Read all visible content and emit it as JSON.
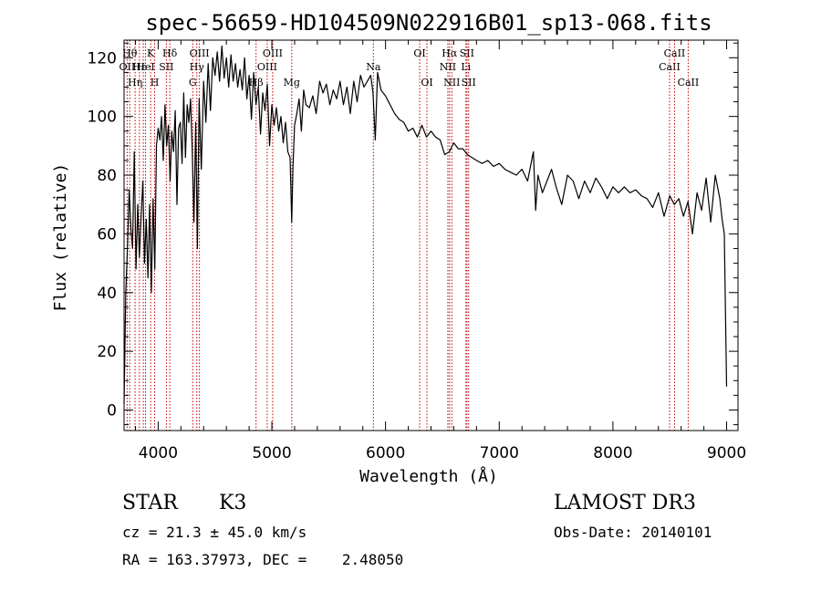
{
  "chart_data": {
    "type": "line",
    "title": "spec-56659-HD104509N022916B01_sp13-068.fits",
    "xlabel": "Wavelength (Å)",
    "ylabel": "Flux (relative)",
    "xlim": [
      3700,
      9100
    ],
    "ylim": [
      -7,
      126
    ],
    "x_ticks": [
      4000,
      5000,
      6000,
      7000,
      8000,
      9000
    ],
    "y_ticks": [
      0,
      20,
      40,
      60,
      80,
      100,
      120
    ],
    "series": [
      {
        "name": "spectrum",
        "x": [
          3700,
          3715,
          3730,
          3745,
          3760,
          3775,
          3790,
          3805,
          3820,
          3835,
          3850,
          3865,
          3880,
          3895,
          3910,
          3925,
          3940,
          3955,
          3970,
          3985,
          4000,
          4015,
          4030,
          4045,
          4060,
          4075,
          4090,
          4105,
          4120,
          4135,
          4150,
          4165,
          4180,
          4195,
          4210,
          4225,
          4240,
          4255,
          4270,
          4285,
          4300,
          4315,
          4330,
          4345,
          4360,
          4380,
          4400,
          4420,
          4440,
          4460,
          4480,
          4500,
          4520,
          4540,
          4560,
          4580,
          4600,
          4620,
          4640,
          4660,
          4680,
          4700,
          4720,
          4740,
          4760,
          4780,
          4800,
          4820,
          4840,
          4860,
          4880,
          4900,
          4920,
          4940,
          4960,
          4980,
          5000,
          5020,
          5040,
          5060,
          5080,
          5100,
          5120,
          5140,
          5160,
          5175,
          5185,
          5200,
          5220,
          5240,
          5260,
          5280,
          5300,
          5330,
          5360,
          5390,
          5420,
          5450,
          5480,
          5510,
          5540,
          5570,
          5600,
          5630,
          5660,
          5690,
          5720,
          5750,
          5780,
          5810,
          5840,
          5870,
          5890,
          5910,
          5930,
          5960,
          6000,
          6040,
          6080,
          6120,
          6160,
          6200,
          6240,
          6280,
          6320,
          6360,
          6400,
          6440,
          6480,
          6520,
          6562,
          6600,
          6640,
          6680,
          6720,
          6760,
          6800,
          6850,
          6900,
          6950,
          7000,
          7050,
          7100,
          7150,
          7200,
          7250,
          7300,
          7320,
          7340,
          7380,
          7420,
          7460,
          7500,
          7550,
          7600,
          7650,
          7700,
          7750,
          7800,
          7850,
          7900,
          7950,
          8000,
          8050,
          8100,
          8150,
          8200,
          8250,
          8300,
          8350,
          8400,
          8450,
          8500,
          8540,
          8580,
          8620,
          8660,
          8700,
          8740,
          8780,
          8820,
          8860,
          8900,
          8940,
          8960,
          8980,
          9000
        ],
        "y": [
          2,
          40,
          55,
          75,
          62,
          55,
          88,
          48,
          70,
          52,
          66,
          78,
          50,
          65,
          45,
          70,
          40,
          72,
          48,
          90,
          96,
          92,
          100,
          85,
          104,
          90,
          97,
          78,
          95,
          88,
          102,
          70,
          96,
          98,
          84,
          108,
          86,
          104,
          98,
          106,
          88,
          64,
          98,
          55,
          106,
          82,
          112,
          98,
          118,
          102,
          120,
          114,
          122,
          112,
          124,
          113,
          120,
          110,
          121,
          112,
          118,
          110,
          116,
          109,
          120,
          106,
          114,
          99,
          115,
          104,
          110,
          94,
          108,
          102,
          111,
          90,
          104,
          97,
          103,
          95,
          100,
          91,
          98,
          88,
          86,
          64,
          82,
          97,
          101,
          106,
          95,
          109,
          104,
          103,
          107,
          101,
          112,
          108,
          111,
          104,
          109,
          106,
          112,
          104,
          110,
          101,
          112,
          105,
          114,
          110,
          112,
          114,
          108,
          92,
          115,
          109,
          107,
          104,
          101,
          99,
          98,
          95,
          96,
          93,
          97,
          93,
          95,
          93,
          92,
          87,
          88,
          91,
          89,
          89,
          87,
          86,
          85,
          84,
          85,
          83,
          84,
          82,
          81,
          80,
          82,
          78,
          88,
          68,
          80,
          74,
          78,
          82,
          76,
          70,
          80,
          78,
          72,
          78,
          74,
          79,
          76,
          72,
          76,
          74,
          76,
          74,
          75,
          73,
          72,
          69,
          74,
          66,
          73,
          70,
          72,
          66,
          71,
          60,
          74,
          68,
          79,
          64,
          80,
          72,
          65,
          60,
          8
        ]
      }
    ],
    "spectral_lines": [
      {
        "x": 3727,
        "label": "OII",
        "row": 2
      },
      {
        "x": 3750,
        "label": "Hθ",
        "row": 1
      },
      {
        "x": 3797,
        "label": "Hη",
        "row": 3
      },
      {
        "x": 3835,
        "label": "Hε",
        "row": 2
      },
      {
        "x": 3869,
        "label": "",
        "row": 0
      },
      {
        "x": 3889,
        "label": "HeI",
        "row": 2
      },
      {
        "x": 3934,
        "label": "K",
        "row": 1
      },
      {
        "x": 3969,
        "label": "H",
        "row": 3
      },
      {
        "x": 4072,
        "label": "SII",
        "row": 2
      },
      {
        "x": 4102,
        "label": "Hδ",
        "row": 1
      },
      {
        "x": 4304,
        "label": "G",
        "row": 3
      },
      {
        "x": 4340,
        "label": "Hγ",
        "row": 2
      },
      {
        "x": 4363,
        "label": "OIII",
        "row": 1
      },
      {
        "x": 4861,
        "label": "Hβ",
        "row": 3
      },
      {
        "x": 4959,
        "label": "OIII",
        "row": 2
      },
      {
        "x": 5007,
        "label": "OIII",
        "row": 1
      },
      {
        "x": 5175,
        "label": "Mg",
        "row": 3
      },
      {
        "x": 5893,
        "label": "Na",
        "row": 2
      },
      {
        "x": 6300,
        "label": "OI",
        "row": 1
      },
      {
        "x": 6364,
        "label": "OI",
        "row": 3
      },
      {
        "x": 6548,
        "label": "NII",
        "row": 2
      },
      {
        "x": 6563,
        "label": "Hα",
        "row": 1
      },
      {
        "x": 6583,
        "label": "NII",
        "row": 3
      },
      {
        "x": 6707,
        "label": "Li",
        "row": 2
      },
      {
        "x": 6716,
        "label": "SII",
        "row": 1
      },
      {
        "x": 6731,
        "label": "SII",
        "row": 3
      },
      {
        "x": 8498,
        "label": "CaII",
        "row": 2
      },
      {
        "x": 8542,
        "label": "CaII",
        "row": 1
      },
      {
        "x": 8662,
        "label": "CaII",
        "row": 3
      }
    ]
  },
  "info": {
    "object_class": "STAR",
    "subclass": "K3",
    "survey": "LAMOST DR3",
    "cz": "cz = 21.3 ± 45.0 km/s",
    "obs_date": "Obs-Date: 20140101",
    "coords": "RA = 163.37973, DEC =    2.48050"
  },
  "colors": {
    "spectrum": "#000000",
    "line_marker": "#c00000",
    "axes": "#000000"
  }
}
